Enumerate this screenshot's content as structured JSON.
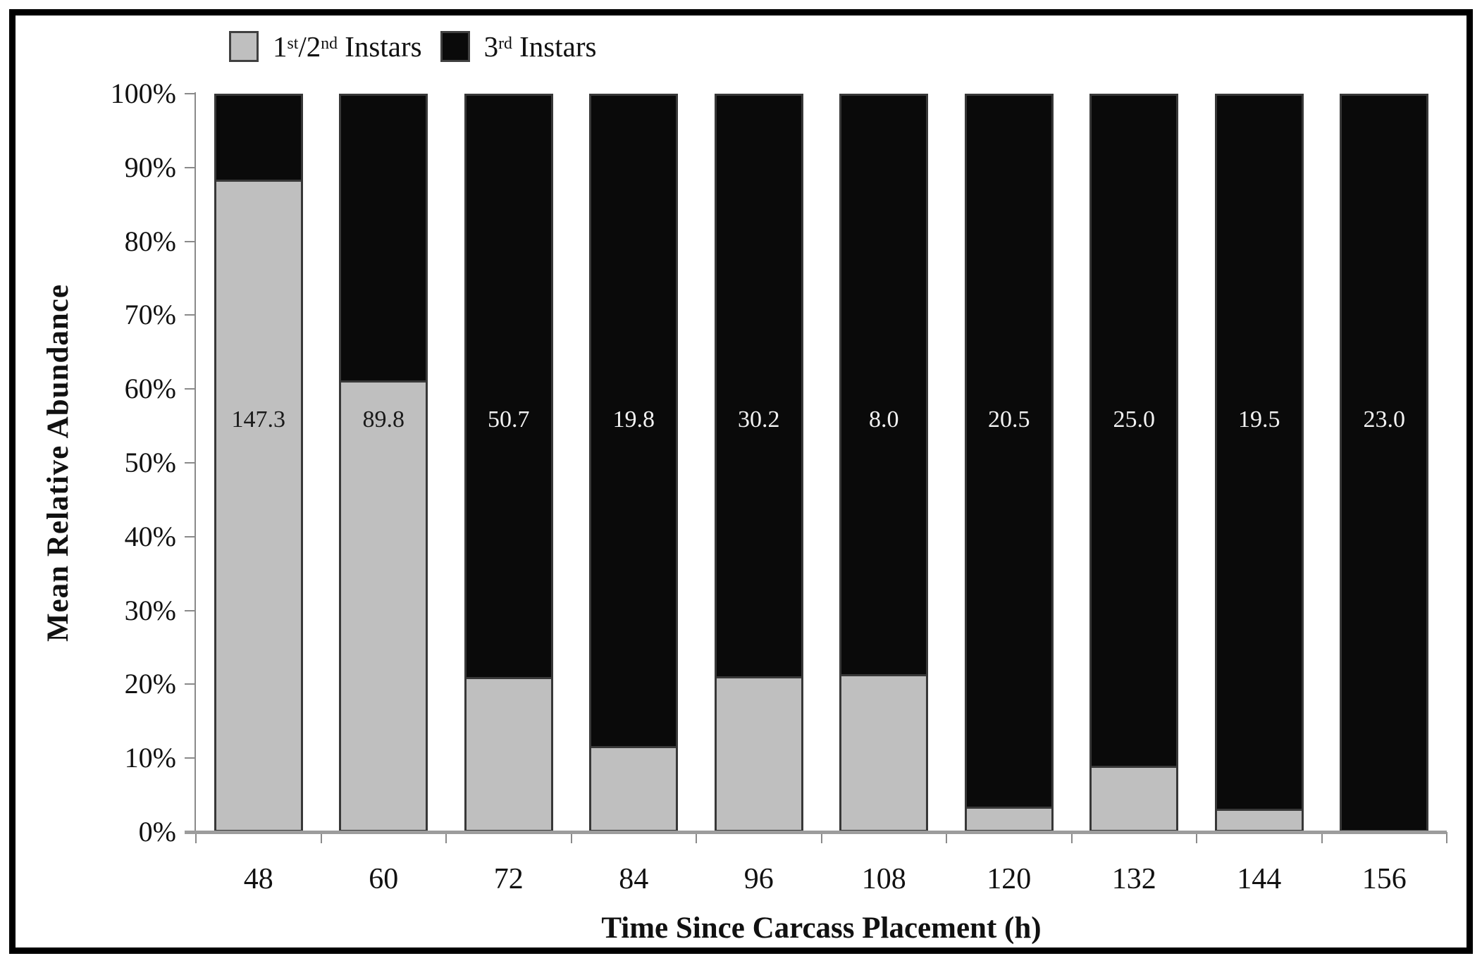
{
  "legend": {
    "items": [
      {
        "parts": [
          "1",
          "st",
          "/2",
          "nd",
          " Instars"
        ],
        "swatch_color": "#bfbfbf"
      },
      {
        "parts": [
          "3",
          "rd",
          " Instars"
        ],
        "swatch_color": "#0a0a0a"
      }
    ]
  },
  "chart_data": {
    "type": "bar",
    "subtype": "100-percent-stacked-column",
    "title": "",
    "xlabel": "Time Since Carcass Placement (h)",
    "ylabel": "Mean Relative Abundance",
    "categories": [
      "48",
      "60",
      "72",
      "84",
      "96",
      "108",
      "120",
      "132",
      "144",
      "156"
    ],
    "ylim": [
      0,
      100
    ],
    "y_tick_labels": [
      "0%",
      "10%",
      "20%",
      "30%",
      "40%",
      "50%",
      "60%",
      "70%",
      "80%",
      "90%",
      "100%"
    ],
    "grid": false,
    "legend_position": "top-left",
    "series": [
      {
        "name": "1st/2nd Instars",
        "color": "#bfbfbf",
        "values_percent": [
          88.6,
          61.2,
          20.8,
          11.4,
          20.9,
          21.2,
          3.2,
          8.7,
          2.9,
          0
        ]
      },
      {
        "name": "3rd Instars",
        "color": "#0a0a0a",
        "values_percent": [
          11.4,
          38.8,
          79.2,
          88.6,
          79.1,
          78.8,
          96.8,
          91.3,
          97.1,
          100
        ]
      }
    ],
    "bar_value_labels": {
      "values": [
        "147.3",
        "89.8",
        "50.7",
        "19.8",
        "30.2",
        "8.0",
        "20.5",
        "25.0",
        "19.5",
        "23.0"
      ],
      "colors": [
        "#1a1a1a",
        "#1a1a1a",
        "#f2f2f2",
        "#f2f2f2",
        "#f2f2f2",
        "#f2f2f2",
        "#f2f2f2",
        "#f2f2f2",
        "#f2f2f2",
        "#f2f2f2"
      ]
    },
    "colors": {
      "axis": "#8a8a8a",
      "bar_border": "#383838",
      "text": "#111111"
    }
  }
}
